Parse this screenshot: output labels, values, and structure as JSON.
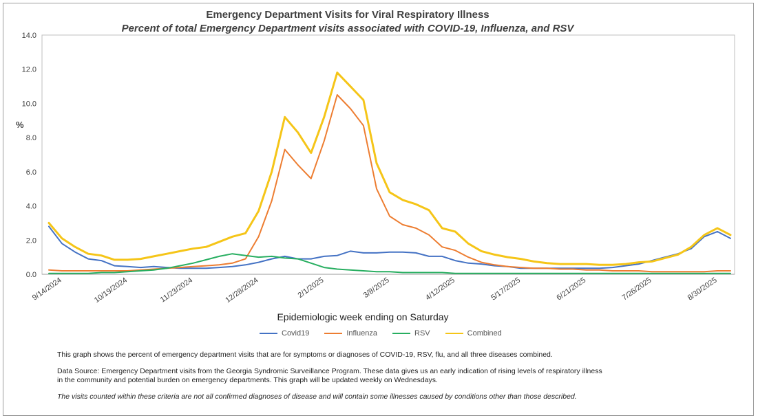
{
  "chart_data": {
    "type": "line",
    "title": "Emergency Department Visits for Viral Respiratory Illness",
    "subtitle": "Percent of total Emergency Department visits associated with COVID-19, Influenza, and RSV",
    "xlabel": "Epidemiologic week ending on Saturday",
    "ylabel": "%",
    "ylim": [
      0,
      14
    ],
    "yticks": [
      "0.0",
      "2.0",
      "4.0",
      "6.0",
      "8.0",
      "10.0",
      "12.0",
      "14.0"
    ],
    "grid": false,
    "legend": "bottom",
    "x": [
      "9/7/2024",
      "9/14/2024",
      "9/21/2024",
      "9/28/2024",
      "10/5/2024",
      "10/12/2024",
      "10/19/2024",
      "10/26/2024",
      "11/2/2024",
      "11/9/2024",
      "11/16/2024",
      "11/23/2024",
      "11/30/2024",
      "12/7/2024",
      "12/14/2024",
      "12/21/2024",
      "12/28/2024",
      "1/4/2025",
      "1/11/2025",
      "1/18/2025",
      "1/25/2025",
      "2/1/2025",
      "2/8/2025",
      "2/15/2025",
      "2/22/2025",
      "3/1/2025",
      "3/8/2025",
      "3/15/2025",
      "3/22/2025",
      "3/29/2025",
      "4/5/2025",
      "4/12/2025",
      "4/19/2025",
      "4/26/2025",
      "5/3/2025",
      "5/10/2025",
      "5/17/2025",
      "5/24/2025",
      "5/31/2025",
      "6/7/2025",
      "6/14/2025",
      "6/21/2025",
      "6/28/2025",
      "7/5/2025",
      "7/12/2025",
      "7/19/2025",
      "7/26/2025",
      "8/2/2025",
      "8/9/2025",
      "8/16/2025",
      "8/23/2025",
      "8/30/2025",
      "9/6/2025"
    ],
    "xtick_labels": [
      "9/14/2024",
      "10/19/2024",
      "11/23/2024",
      "12/28/2024",
      "2/1/2025",
      "3/8/2025",
      "4/12/2025",
      "5/17/2025",
      "6/21/2025",
      "7/26/2025",
      "8/30/2025"
    ],
    "xtick_indices": [
      1,
      6,
      11,
      16,
      21,
      26,
      31,
      36,
      41,
      46,
      51
    ],
    "series": [
      {
        "name": "Covid19",
        "color": "#4472C4",
        "values": [
          2.8,
          1.8,
          1.3,
          0.9,
          0.8,
          0.5,
          0.45,
          0.4,
          0.45,
          0.4,
          0.35,
          0.35,
          0.35,
          0.4,
          0.45,
          0.55,
          0.7,
          0.9,
          1.05,
          0.9,
          0.9,
          1.05,
          1.1,
          1.35,
          1.25,
          1.25,
          1.3,
          1.3,
          1.25,
          1.05,
          1.05,
          0.8,
          0.65,
          0.6,
          0.5,
          0.45,
          0.35,
          0.35,
          0.35,
          0.35,
          0.35,
          0.35,
          0.35,
          0.4,
          0.5,
          0.6,
          0.8,
          1.0,
          1.2,
          1.5,
          2.2,
          2.5,
          2.1
        ]
      },
      {
        "name": "Influenza",
        "color": "#ED7D31",
        "values": [
          0.25,
          0.2,
          0.2,
          0.2,
          0.2,
          0.2,
          0.2,
          0.25,
          0.3,
          0.35,
          0.4,
          0.45,
          0.5,
          0.55,
          0.65,
          0.9,
          2.2,
          4.3,
          7.3,
          6.4,
          5.6,
          7.8,
          10.5,
          9.7,
          8.7,
          5.0,
          3.4,
          2.9,
          2.7,
          2.3,
          1.6,
          1.4,
          1.0,
          0.7,
          0.55,
          0.45,
          0.4,
          0.35,
          0.35,
          0.3,
          0.3,
          0.25,
          0.25,
          0.2,
          0.2,
          0.2,
          0.15,
          0.15,
          0.15,
          0.15,
          0.15,
          0.2,
          0.2
        ]
      },
      {
        "name": "RSV",
        "color": "#27AE60",
        "values": [
          0.05,
          0.05,
          0.05,
          0.05,
          0.1,
          0.1,
          0.15,
          0.2,
          0.25,
          0.35,
          0.5,
          0.65,
          0.85,
          1.05,
          1.2,
          1.1,
          1.0,
          1.05,
          0.95,
          0.9,
          0.65,
          0.4,
          0.3,
          0.25,
          0.2,
          0.15,
          0.15,
          0.1,
          0.1,
          0.1,
          0.1,
          0.05,
          0.05,
          0.05,
          0.05,
          0.05,
          0.05,
          0.05,
          0.05,
          0.05,
          0.05,
          0.05,
          0.05,
          0.05,
          0.05,
          0.05,
          0.05,
          0.05,
          0.05,
          0.05,
          0.05,
          0.05,
          0.05
        ]
      },
      {
        "name": "Combined",
        "color": "#F5C518",
        "values": [
          3.0,
          2.1,
          1.6,
          1.2,
          1.1,
          0.85,
          0.85,
          0.9,
          1.05,
          1.2,
          1.35,
          1.5,
          1.6,
          1.9,
          2.2,
          2.4,
          3.7,
          6.0,
          9.2,
          8.3,
          7.1,
          9.2,
          11.8,
          11.0,
          10.2,
          6.5,
          4.8,
          4.35,
          4.1,
          3.75,
          2.7,
          2.5,
          1.8,
          1.35,
          1.15,
          1.0,
          0.9,
          0.75,
          0.65,
          0.6,
          0.6,
          0.6,
          0.55,
          0.55,
          0.6,
          0.7,
          0.75,
          0.95,
          1.15,
          1.6,
          2.3,
          2.7,
          2.3
        ]
      }
    ]
  },
  "notes": {
    "line1": "This graph shows the percent of emergency department visits that are for symptoms or diagnoses of COVID-19, RSV, flu, and all three diseases combined.",
    "line2a": "Data Source: Emergency Department visits from the Georgia Syndromic Surveillance Program. These data gives us an early indication of rising levels of respiratory illness",
    "line2b": "in the community and potential burden on emergency departments. This graph will be updated weekly on Wednesdays.",
    "line3": "The visits counted within these criteria are not all confirmed diagnoses of disease and will contain some illnesses caused by conditions other than those described."
  }
}
